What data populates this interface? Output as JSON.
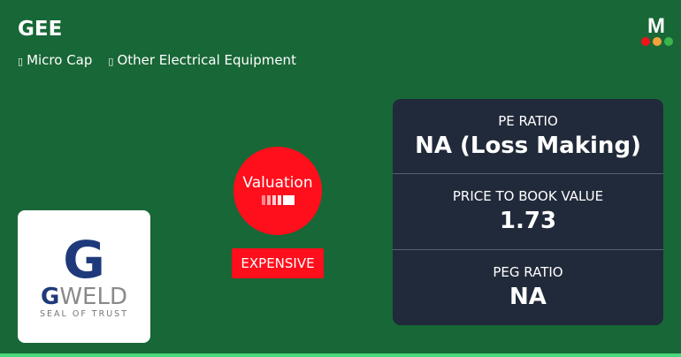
{
  "header": {
    "ticker": "GEE",
    "tags": [
      {
        "icon": "tag-icon",
        "label": "Micro Cap"
      },
      {
        "icon": "tag-icon",
        "label": "Other Electrical Equipment"
      }
    ]
  },
  "brand": {
    "letter": "M",
    "dot_colors": [
      "#f0131c",
      "#f2a33a",
      "#3cb54a"
    ]
  },
  "company_logo": {
    "mark": "G",
    "name_prefix": "G",
    "name_rest": "WELD",
    "tagline": "SEAL OF TRUST"
  },
  "valuation": {
    "label": "Valuation",
    "level": 5,
    "levels": 5,
    "verdict": "EXPENSIVE",
    "color": "#ff0e1c"
  },
  "metrics": [
    {
      "label": "PE RATIO",
      "value": "NA (Loss Making)"
    },
    {
      "label": "PRICE TO BOOK VALUE",
      "value": "1.73"
    },
    {
      "label": "PEG RATIO",
      "value": "NA"
    }
  ]
}
